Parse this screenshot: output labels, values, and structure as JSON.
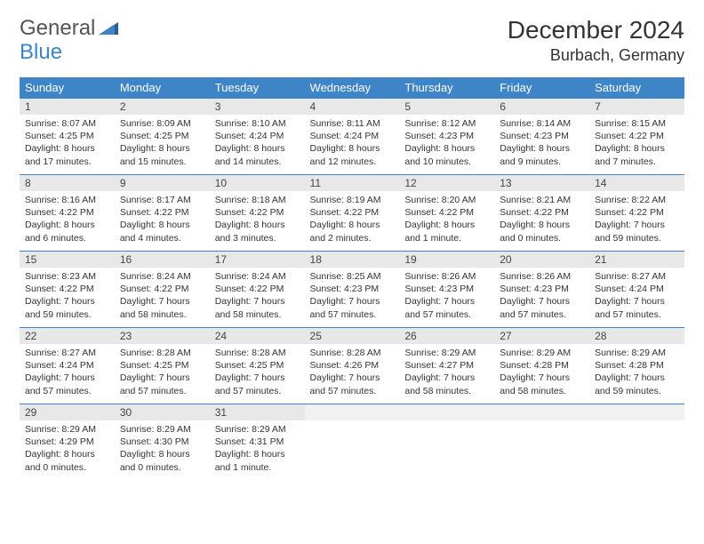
{
  "logo": {
    "part1": "General",
    "part2": "Blue"
  },
  "title": "December 2024",
  "location": "Burbach, Germany",
  "colors": {
    "header_bg": "#3d85c6",
    "header_fg": "#ffffff",
    "daynum_bg": "#e8e8e8",
    "border": "#3d85c6",
    "text": "#333333",
    "logo_gray": "#555555",
    "logo_blue": "#3d85c6"
  },
  "weekdays": [
    "Sunday",
    "Monday",
    "Tuesday",
    "Wednesday",
    "Thursday",
    "Friday",
    "Saturday"
  ],
  "days": [
    {
      "n": "1",
      "sr": "8:07 AM",
      "ss": "4:25 PM",
      "dl": "8 hours and 17 minutes."
    },
    {
      "n": "2",
      "sr": "8:09 AM",
      "ss": "4:25 PM",
      "dl": "8 hours and 15 minutes."
    },
    {
      "n": "3",
      "sr": "8:10 AM",
      "ss": "4:24 PM",
      "dl": "8 hours and 14 minutes."
    },
    {
      "n": "4",
      "sr": "8:11 AM",
      "ss": "4:24 PM",
      "dl": "8 hours and 12 minutes."
    },
    {
      "n": "5",
      "sr": "8:12 AM",
      "ss": "4:23 PM",
      "dl": "8 hours and 10 minutes."
    },
    {
      "n": "6",
      "sr": "8:14 AM",
      "ss": "4:23 PM",
      "dl": "8 hours and 9 minutes."
    },
    {
      "n": "7",
      "sr": "8:15 AM",
      "ss": "4:22 PM",
      "dl": "8 hours and 7 minutes."
    },
    {
      "n": "8",
      "sr": "8:16 AM",
      "ss": "4:22 PM",
      "dl": "8 hours and 6 minutes."
    },
    {
      "n": "9",
      "sr": "8:17 AM",
      "ss": "4:22 PM",
      "dl": "8 hours and 4 minutes."
    },
    {
      "n": "10",
      "sr": "8:18 AM",
      "ss": "4:22 PM",
      "dl": "8 hours and 3 minutes."
    },
    {
      "n": "11",
      "sr": "8:19 AM",
      "ss": "4:22 PM",
      "dl": "8 hours and 2 minutes."
    },
    {
      "n": "12",
      "sr": "8:20 AM",
      "ss": "4:22 PM",
      "dl": "8 hours and 1 minute."
    },
    {
      "n": "13",
      "sr": "8:21 AM",
      "ss": "4:22 PM",
      "dl": "8 hours and 0 minutes."
    },
    {
      "n": "14",
      "sr": "8:22 AM",
      "ss": "4:22 PM",
      "dl": "7 hours and 59 minutes."
    },
    {
      "n": "15",
      "sr": "8:23 AM",
      "ss": "4:22 PM",
      "dl": "7 hours and 59 minutes."
    },
    {
      "n": "16",
      "sr": "8:24 AM",
      "ss": "4:22 PM",
      "dl": "7 hours and 58 minutes."
    },
    {
      "n": "17",
      "sr": "8:24 AM",
      "ss": "4:22 PM",
      "dl": "7 hours and 58 minutes."
    },
    {
      "n": "18",
      "sr": "8:25 AM",
      "ss": "4:23 PM",
      "dl": "7 hours and 57 minutes."
    },
    {
      "n": "19",
      "sr": "8:26 AM",
      "ss": "4:23 PM",
      "dl": "7 hours and 57 minutes."
    },
    {
      "n": "20",
      "sr": "8:26 AM",
      "ss": "4:23 PM",
      "dl": "7 hours and 57 minutes."
    },
    {
      "n": "21",
      "sr": "8:27 AM",
      "ss": "4:24 PM",
      "dl": "7 hours and 57 minutes."
    },
    {
      "n": "22",
      "sr": "8:27 AM",
      "ss": "4:24 PM",
      "dl": "7 hours and 57 minutes."
    },
    {
      "n": "23",
      "sr": "8:28 AM",
      "ss": "4:25 PM",
      "dl": "7 hours and 57 minutes."
    },
    {
      "n": "24",
      "sr": "8:28 AM",
      "ss": "4:25 PM",
      "dl": "7 hours and 57 minutes."
    },
    {
      "n": "25",
      "sr": "8:28 AM",
      "ss": "4:26 PM",
      "dl": "7 hours and 57 minutes."
    },
    {
      "n": "26",
      "sr": "8:29 AM",
      "ss": "4:27 PM",
      "dl": "7 hours and 58 minutes."
    },
    {
      "n": "27",
      "sr": "8:29 AM",
      "ss": "4:28 PM",
      "dl": "7 hours and 58 minutes."
    },
    {
      "n": "28",
      "sr": "8:29 AM",
      "ss": "4:28 PM",
      "dl": "7 hours and 59 minutes."
    },
    {
      "n": "29",
      "sr": "8:29 AM",
      "ss": "4:29 PM",
      "dl": "8 hours and 0 minutes."
    },
    {
      "n": "30",
      "sr": "8:29 AM",
      "ss": "4:30 PM",
      "dl": "8 hours and 0 minutes."
    },
    {
      "n": "31",
      "sr": "8:29 AM",
      "ss": "4:31 PM",
      "dl": "8 hours and 1 minute."
    }
  ],
  "labels": {
    "sunrise": "Sunrise:",
    "sunset": "Sunset:",
    "daylight": "Daylight:"
  }
}
